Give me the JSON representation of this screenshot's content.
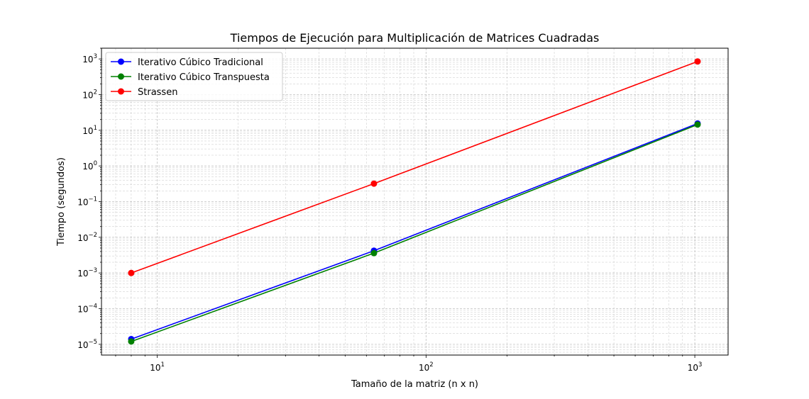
{
  "chart_data": {
    "type": "line",
    "title": "Tiempos de Ejecución para Multiplicación de Matrices Cuadradas",
    "xlabel": "Tamaño de la matriz (n x n)",
    "ylabel": "Tiempo (segundos)",
    "xscale": "log",
    "yscale": "log",
    "xlim": [
      6.2,
      1330
    ],
    "ylim": [
      5e-06,
      2000.0
    ],
    "grid": true,
    "legend_position": "top-left",
    "x": [
      8,
      64,
      1024
    ],
    "series": [
      {
        "name": "Iterativo Cúbico Tradicional",
        "color": "#0000ff",
        "values": [
          1.4e-05,
          0.0042,
          15.5
        ]
      },
      {
        "name": "Iterativo Cúbico Transpuesta",
        "color": "#008000",
        "values": [
          1.2e-05,
          0.0036,
          14.5
        ]
      },
      {
        "name": "Strassen",
        "color": "#ff0000",
        "values": [
          0.001,
          0.32,
          850
        ]
      }
    ],
    "x_ticks": [
      {
        "value": 10,
        "base": "10",
        "exp": "1"
      },
      {
        "value": 100,
        "base": "10",
        "exp": "2"
      },
      {
        "value": 1000,
        "base": "10",
        "exp": "3"
      }
    ],
    "y_ticks": [
      {
        "value": 1e-05,
        "base": "10",
        "exp": "−5"
      },
      {
        "value": 0.0001,
        "base": "10",
        "exp": "−4"
      },
      {
        "value": 0.001,
        "base": "10",
        "exp": "−3"
      },
      {
        "value": 0.01,
        "base": "10",
        "exp": "−2"
      },
      {
        "value": 0.1,
        "base": "10",
        "exp": "−1"
      },
      {
        "value": 1,
        "base": "10",
        "exp": "0"
      },
      {
        "value": 10,
        "base": "10",
        "exp": "1"
      },
      {
        "value": 100,
        "base": "10",
        "exp": "2"
      },
      {
        "value": 1000,
        "base": "10",
        "exp": "3"
      }
    ]
  }
}
